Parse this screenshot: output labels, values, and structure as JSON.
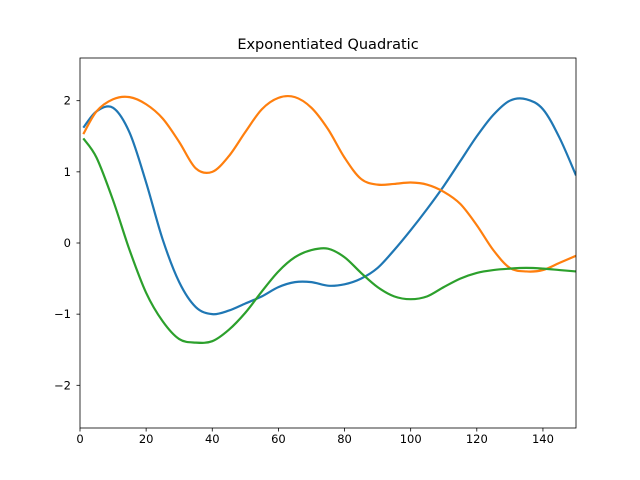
{
  "chart_data": {
    "type": "line",
    "title": "Exponentiated Quadratic",
    "xlabel": "",
    "ylabel": "",
    "xlim": [
      0,
      150
    ],
    "ylim": [
      -2.6,
      2.6
    ],
    "xticks": [
      0,
      20,
      40,
      60,
      80,
      100,
      120,
      140
    ],
    "xtick_labels": [
      "0",
      "20",
      "40",
      "60",
      "80",
      "100",
      "120",
      "140"
    ],
    "yticks": [
      -2,
      -1,
      0,
      1,
      2
    ],
    "ytick_labels": [
      "−2",
      "−1",
      "0",
      "1",
      "2"
    ],
    "grid": false,
    "legend": "none",
    "x": [
      1,
      5,
      10,
      15,
      20,
      25,
      30,
      35,
      40,
      45,
      50,
      55,
      60,
      65,
      70,
      75,
      80,
      85,
      90,
      95,
      100,
      105,
      110,
      115,
      120,
      125,
      130,
      135,
      140,
      145,
      150
    ],
    "series": [
      {
        "color": "#1f77b4",
        "values": [
          1.62,
          1.85,
          1.9,
          1.55,
          0.85,
          0.05,
          -0.55,
          -0.9,
          -1.0,
          -0.95,
          -0.85,
          -0.75,
          -0.62,
          -0.55,
          -0.55,
          -0.6,
          -0.58,
          -0.5,
          -0.35,
          -0.1,
          0.18,
          0.48,
          0.8,
          1.15,
          1.5,
          1.8,
          2.0,
          2.02,
          1.88,
          1.48,
          0.95
        ]
      },
      {
        "color": "#ff7f0e",
        "values": [
          1.53,
          1.85,
          2.02,
          2.05,
          1.95,
          1.75,
          1.42,
          1.05,
          1.0,
          1.22,
          1.56,
          1.88,
          2.04,
          2.05,
          1.9,
          1.6,
          1.2,
          0.9,
          0.82,
          0.83,
          0.85,
          0.82,
          0.72,
          0.55,
          0.25,
          -0.1,
          -0.35,
          -0.4,
          -0.38,
          -0.28,
          -0.18
        ]
      },
      {
        "color": "#2ca02c",
        "values": [
          1.47,
          1.2,
          0.6,
          -0.1,
          -0.7,
          -1.1,
          -1.35,
          -1.4,
          -1.38,
          -1.22,
          -0.98,
          -0.68,
          -0.4,
          -0.2,
          -0.1,
          -0.08,
          -0.2,
          -0.42,
          -0.62,
          -0.75,
          -0.79,
          -0.75,
          -0.62,
          -0.5,
          -0.42,
          -0.38,
          -0.36,
          -0.35,
          -0.36,
          -0.38,
          -0.4
        ]
      }
    ]
  }
}
